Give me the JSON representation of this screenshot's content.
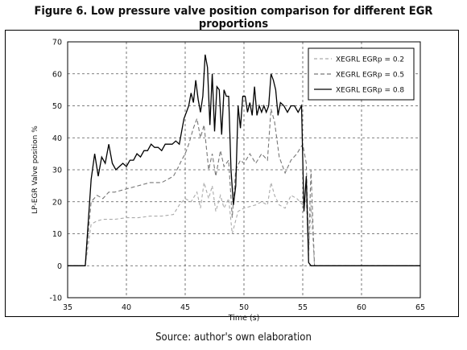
{
  "page": {
    "title": "Figure 6. Low pressure valve position comparison for different EGR proportions",
    "source": "Source: author's own elaboration"
  },
  "chart_data": {
    "type": "line",
    "title": "",
    "xlabel": "Time (s)",
    "ylabel": "LP-EGR Valve position %",
    "xlim": [
      35,
      65
    ],
    "ylim": [
      -10,
      70
    ],
    "xticks": [
      35,
      40,
      45,
      50,
      55,
      60,
      65
    ],
    "yticks": [
      -10,
      0,
      10,
      20,
      30,
      40,
      50,
      60,
      70
    ],
    "grid": true,
    "legend_position": "top-right",
    "series": [
      {
        "name": "XEGRL EGRp = 0.2",
        "color": "#aaaaaa",
        "dash": "4,3",
        "x": [
          35,
          36.5,
          37,
          37.5,
          38,
          39,
          40,
          41,
          42,
          43,
          44,
          44.5,
          45,
          45.5,
          46,
          46.3,
          46.6,
          47,
          47.3,
          47.6,
          48,
          48.3,
          48.7,
          49,
          49.5,
          50,
          51,
          51.5,
          52,
          52.3,
          52.6,
          53,
          53.5,
          54,
          54.5,
          55,
          55.3,
          55.5,
          55.7,
          56,
          57,
          60,
          65
        ],
        "y": [
          0,
          0,
          13,
          14,
          14.5,
          14.5,
          15,
          15,
          15.5,
          15.5,
          16,
          19,
          21,
          20,
          23,
          18,
          26,
          21,
          25,
          17,
          22,
          18,
          21,
          10,
          17,
          18,
          19,
          20,
          19,
          26,
          22,
          19,
          18,
          22,
          21,
          19,
          21,
          3,
          19,
          0,
          0,
          0,
          0
        ]
      },
      {
        "name": "XEGRL EGRp = 0.5",
        "color": "#777777",
        "dash": "5,3",
        "x": [
          35,
          36.5,
          37,
          37.5,
          38,
          38.5,
          39,
          40,
          41,
          42,
          43,
          44,
          44.3,
          44.7,
          45,
          45.3,
          45.7,
          46,
          46.3,
          46.6,
          47,
          47.3,
          47.6,
          48,
          48.3,
          48.7,
          49,
          49.3,
          49.7,
          50,
          50.5,
          51,
          51.5,
          52,
          52.3,
          52.6,
          53,
          53.5,
          54,
          54.5,
          55,
          55.3,
          55.5,
          55.7,
          56,
          57,
          60,
          65
        ],
        "y": [
          0,
          0,
          20,
          22,
          21,
          23,
          23,
          24,
          25,
          26,
          26,
          28,
          30,
          33,
          35,
          38,
          43,
          46,
          40,
          44,
          30,
          35,
          28,
          36,
          31,
          33,
          15,
          30,
          33,
          32,
          35,
          32,
          35,
          33,
          49,
          45,
          34,
          29,
          33,
          35,
          38,
          32,
          5,
          30,
          0,
          0,
          0,
          0
        ]
      },
      {
        "name": "XEGRL EGRp = 0.8",
        "color": "#000000",
        "dash": "",
        "x": [
          35,
          36.5,
          37,
          37.3,
          37.6,
          37.9,
          38.2,
          38.5,
          38.8,
          39.1,
          39.4,
          39.7,
          40,
          40.3,
          40.6,
          40.9,
          41.2,
          41.5,
          41.8,
          42.1,
          42.4,
          42.7,
          43,
          43.3,
          43.6,
          43.9,
          44.2,
          44.5,
          44.7,
          44.9,
          45.1,
          45.3,
          45.5,
          45.7,
          45.9,
          46.1,
          46.3,
          46.5,
          46.7,
          46.9,
          47.1,
          47.3,
          47.5,
          47.7,
          47.9,
          48.1,
          48.3,
          48.5,
          48.7,
          48.9,
          49.1,
          49.3,
          49.5,
          49.7,
          49.9,
          50.1,
          50.3,
          50.5,
          50.7,
          50.9,
          51.1,
          51.3,
          51.5,
          51.7,
          51.9,
          52.1,
          52.3,
          52.5,
          52.7,
          52.9,
          53.1,
          53.4,
          53.7,
          54,
          54.3,
          54.6,
          54.9,
          55.1,
          55.3,
          55.5,
          55.7,
          56,
          57,
          60,
          65
        ],
        "y": [
          0,
          0,
          27,
          35,
          28,
          34,
          32,
          38,
          32,
          30,
          31,
          32,
          31,
          33,
          33,
          35,
          34,
          36,
          36,
          38,
          37,
          37,
          36,
          38,
          38,
          38,
          39,
          38,
          42,
          46,
          48,
          50,
          54,
          51,
          58,
          52,
          48,
          53,
          66,
          62,
          44,
          60,
          42,
          56,
          55,
          41,
          55,
          53,
          53,
          30,
          19,
          25,
          50,
          43,
          53,
          53,
          48,
          51,
          47,
          56,
          47,
          50,
          48,
          50,
          48,
          50,
          60,
          58,
          55,
          47,
          51,
          50,
          48,
          50,
          50,
          48,
          50,
          17,
          28,
          1,
          0,
          0,
          0,
          0,
          0
        ]
      }
    ]
  }
}
